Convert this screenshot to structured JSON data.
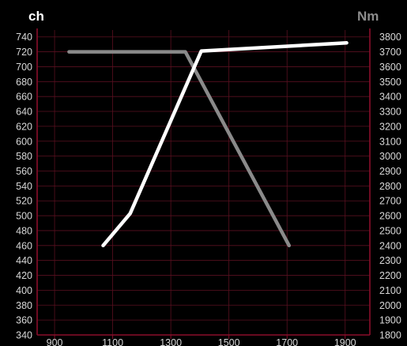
{
  "chart_data": {
    "type": "line",
    "left_axis": {
      "unit": "ch",
      "ticks": [
        340,
        360,
        380,
        400,
        420,
        440,
        460,
        480,
        500,
        520,
        540,
        560,
        580,
        600,
        620,
        640,
        660,
        680,
        700,
        720,
        740
      ],
      "range": [
        340,
        745
      ]
    },
    "right_axis": {
      "unit": "Nm",
      "ticks": [
        1800,
        1900,
        2000,
        2100,
        2200,
        2300,
        2400,
        2500,
        2600,
        2700,
        2800,
        2900,
        3000,
        3100,
        3200,
        3300,
        3400,
        3500,
        3600,
        3700,
        3800
      ],
      "range": [
        1800,
        3825
      ]
    },
    "x_axis": {
      "ticks": [
        900,
        1100,
        1300,
        1500,
        1700,
        1900
      ],
      "range": [
        840,
        1985
      ]
    },
    "series": [
      {
        "axis": "left",
        "color": "#ffffff",
        "x": [
          1067,
          1160,
          1405,
          1905
        ],
        "y": [
          460,
          503,
          721,
          732
        ]
      },
      {
        "axis": "right",
        "color": "#8a8a8a",
        "x": [
          950,
          1350,
          1707
        ],
        "y": [
          3700,
          3700,
          2400
        ]
      }
    ],
    "grid": true,
    "colors": {
      "background": "#000000",
      "grid": "#5a1020",
      "axis": "#8a0e2a",
      "left_unit": "#ffffff",
      "right_unit": "#8c8c8c"
    }
  }
}
